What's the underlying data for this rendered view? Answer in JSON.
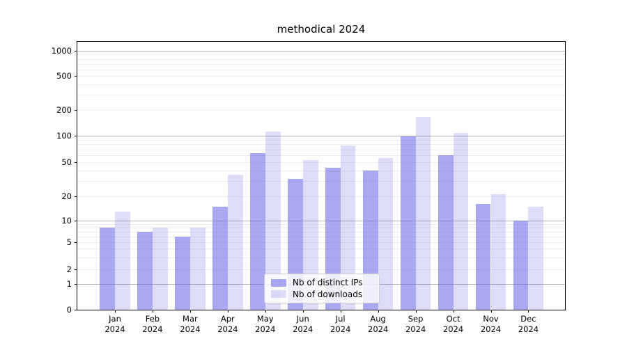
{
  "title": "methodical 2024",
  "legend": {
    "items": [
      {
        "label": "Nb of distinct IPs",
        "series": "ips"
      },
      {
        "label": "Nb of downloads",
        "series": "downloads"
      }
    ]
  },
  "axes": {
    "y_ticks": [
      {
        "label": "1000",
        "value": 1000
      },
      {
        "label": "500",
        "value": 500
      },
      {
        "label": "200",
        "value": 200
      },
      {
        "label": "100",
        "value": 100
      },
      {
        "label": "50",
        "value": 50
      },
      {
        "label": "20",
        "value": 20
      },
      {
        "label": "10",
        "value": 10
      },
      {
        "label": "5",
        "value": 5
      },
      {
        "label": "2",
        "value": 2
      },
      {
        "label": "1",
        "value": 1
      },
      {
        "label": "0",
        "value": 0
      }
    ],
    "y_minor_values": [
      3,
      4,
      6,
      7,
      8,
      9,
      30,
      40,
      60,
      70,
      80,
      90,
      300,
      400,
      600,
      700,
      800,
      900
    ],
    "x_ticks": [
      {
        "line1": "Jan",
        "line2": "2024"
      },
      {
        "line1": "Feb",
        "line2": "2024"
      },
      {
        "line1": "Mar",
        "line2": "2024"
      },
      {
        "line1": "Apr",
        "line2": "2024"
      },
      {
        "line1": "May",
        "line2": "2024"
      },
      {
        "line1": "Jun",
        "line2": "2024"
      },
      {
        "line1": "Jul",
        "line2": "2024"
      },
      {
        "line1": "Aug",
        "line2": "2024"
      },
      {
        "line1": "Sep",
        "line2": "2024"
      },
      {
        "line1": "Oct",
        "line2": "2024"
      },
      {
        "line1": "Nov",
        "line2": "2024"
      },
      {
        "line1": "Dec",
        "line2": "2024"
      }
    ]
  },
  "colors": {
    "ips_bar": "rgba(99,99,229,0.55)",
    "downloads_bar": "rgba(99,99,229,0.22)",
    "major_gridline": "#b0b0b0",
    "minor_gridline": "#ececec",
    "axis_line": "#000000",
    "legend_border": "#cccccc"
  },
  "chart_data": {
    "type": "bar",
    "title": "methodical 2024",
    "categories": [
      "Jan 2024",
      "Feb 2024",
      "Mar 2024",
      "Apr 2024",
      "May 2024",
      "Jun 2024",
      "Jul 2024",
      "Aug 2024",
      "Sep 2024",
      "Oct 2024",
      "Nov 2024",
      "Dec 2024"
    ],
    "series": [
      {
        "name": "Nb of distinct IPs",
        "values": [
          8,
          7,
          6,
          15,
          63,
          32,
          43,
          40,
          98,
          60,
          16,
          10
        ]
      },
      {
        "name": "Nb of downloads",
        "values": [
          13,
          8,
          8,
          36,
          112,
          53,
          78,
          56,
          165,
          108,
          21,
          15
        ]
      }
    ],
    "xlabel": "",
    "ylabel": "",
    "yscale": "symlog",
    "ylim": [
      0,
      1000
    ],
    "yticks": [
      0,
      1,
      2,
      5,
      10,
      20,
      50,
      100,
      200,
      500,
      1000
    ],
    "grid": true,
    "legend_position": "lower center"
  }
}
